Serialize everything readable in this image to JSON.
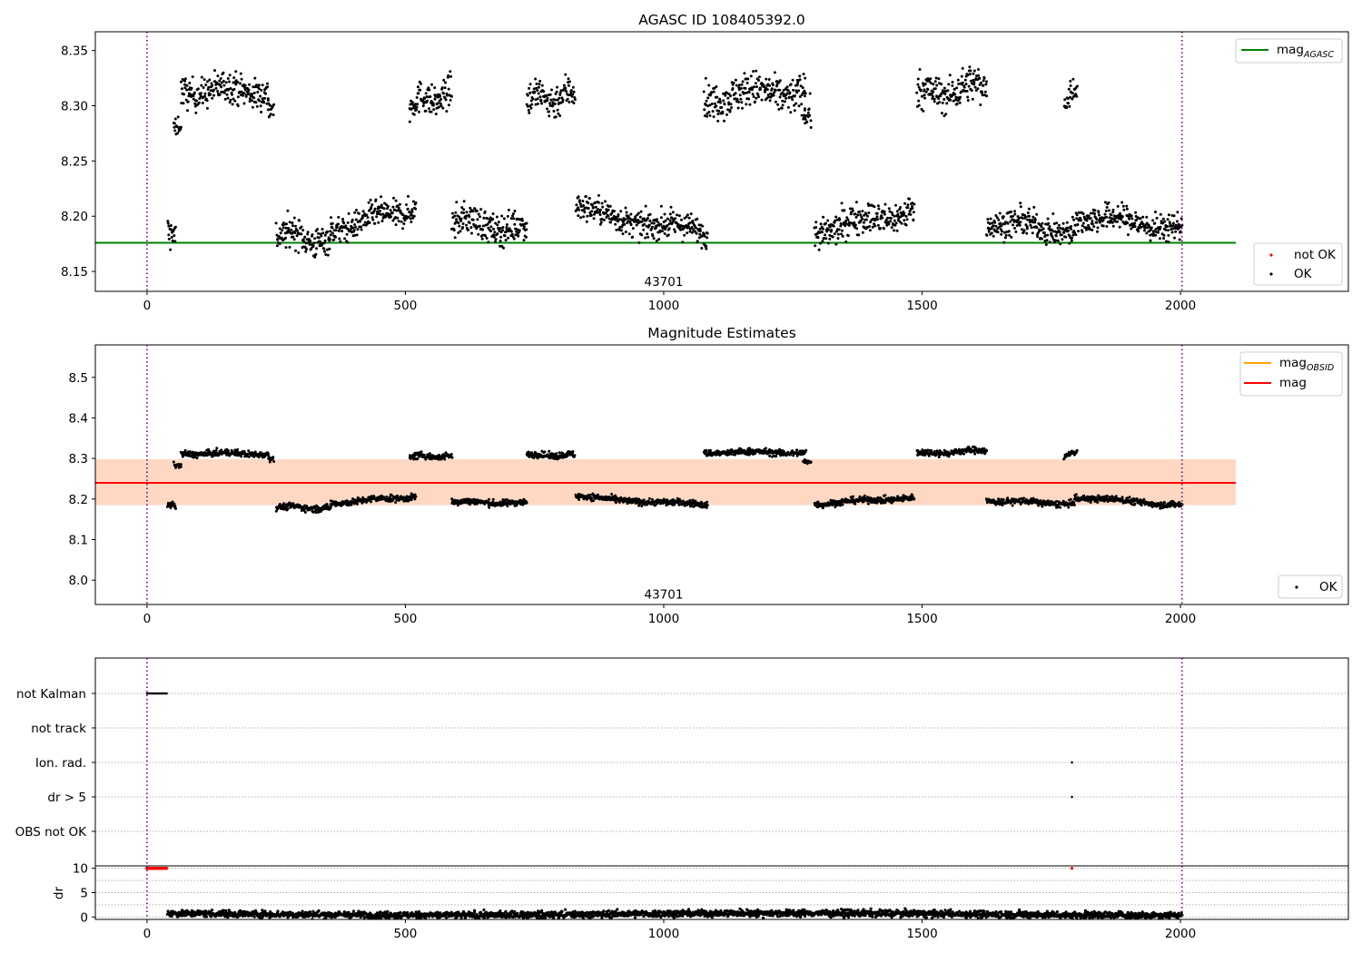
{
  "chart_data": [
    {
      "type": "scatter",
      "title": "AGASC ID 108405392.0",
      "xlim": [
        -100,
        2325
      ],
      "ylim": [
        8.132,
        8.367
      ],
      "xticks": [
        0,
        500,
        1000,
        1500,
        2000
      ],
      "yticks": [
        "8.15",
        "8.20",
        "8.25",
        "8.30",
        "8.35"
      ],
      "yticks_values": [
        8.15,
        8.2,
        8.25,
        8.3,
        8.35
      ],
      "annotation": {
        "text": "43701",
        "x": 1000,
        "y": 8.137
      },
      "reference_lines": [
        {
          "label": "mag_AGASC",
          "label_main": "mag",
          "label_sub": "AGASC",
          "value": 8.176,
          "x_range": [
            -100,
            2107
          ],
          "color": "#008000"
        }
      ],
      "observation_bounds": [
        0,
        2003
      ],
      "legend_position": "top-right",
      "legend_points": [
        {
          "label": "not OK",
          "color": "#ff0000"
        },
        {
          "label": "OK",
          "color": "#000000"
        }
      ],
      "series": [
        {
          "name": "OK",
          "color": "#000000",
          "segments": [
            {
              "x": [
                40,
                55
              ],
              "y": [
                8.185,
                8.185
              ],
              "noise": 0.007
            },
            {
              "x": [
                52,
                66
              ],
              "y": [
                8.28,
                8.282
              ],
              "noise": 0.004
            },
            {
              "x": [
                66,
                235
              ],
              "y": [
                8.314,
                8.314
              ],
              "noise": 0.007
            },
            {
              "x": [
                235,
                245
              ],
              "y": [
                8.298,
                8.298
              ],
              "noise": 0.005
            },
            {
              "x": [
                250,
                355
              ],
              "y": [
                8.186,
                8.176
              ],
              "noise": 0.007
            },
            {
              "x": [
                355,
                520
              ],
              "y": [
                8.188,
                8.208
              ],
              "noise": 0.006
            },
            {
              "x": [
                508,
                590
              ],
              "y": [
                8.302,
                8.31
              ],
              "noise": 0.007
            },
            {
              "x": [
                590,
                735
              ],
              "y": [
                8.196,
                8.188
              ],
              "noise": 0.007
            },
            {
              "x": [
                735,
                828
              ],
              "y": [
                8.305,
                8.31
              ],
              "noise": 0.008
            },
            {
              "x": [
                830,
                1085
              ],
              "y": [
                8.206,
                8.184
              ],
              "noise": 0.006
            },
            {
              "x": [
                1078,
                1275
              ],
              "y": [
                8.308,
                8.314
              ],
              "noise": 0.008
            },
            {
              "x": [
                1270,
                1285
              ],
              "y": [
                8.292,
                8.292
              ],
              "noise": 0.006
            },
            {
              "x": [
                1292,
                1485
              ],
              "y": [
                8.186,
                8.206
              ],
              "noise": 0.007
            },
            {
              "x": [
                1490,
                1625
              ],
              "y": [
                8.31,
                8.318
              ],
              "noise": 0.008
            },
            {
              "x": [
                1625,
                1795
              ],
              "y": [
                8.196,
                8.186
              ],
              "noise": 0.006
            },
            {
              "x": [
                1775,
                1800
              ],
              "y": [
                8.302,
                8.318
              ],
              "noise": 0.005
            },
            {
              "x": [
                1795,
                2003
              ],
              "y": [
                8.2,
                8.19
              ],
              "noise": 0.006
            }
          ]
        }
      ]
    },
    {
      "type": "scatter",
      "title": "Magnitude Estimates",
      "xlim": [
        -100,
        2325
      ],
      "ylim": [
        7.94,
        8.58
      ],
      "xticks": [
        0,
        500,
        1000,
        1500,
        2000
      ],
      "yticks": [
        "8.0",
        "8.1",
        "8.2",
        "8.3",
        "8.4",
        "8.5"
      ],
      "yticks_values": [
        8.0,
        8.1,
        8.2,
        8.3,
        8.4,
        8.5
      ],
      "annotation": {
        "text": "43701",
        "x": 1000,
        "y": 7.955
      },
      "reference_lines": [
        {
          "label": "mag_OBSID",
          "label_main": "mag",
          "label_sub": "OBSID",
          "value": 8.24,
          "x_range": [
            -100,
            2107
          ],
          "color": "#ffa500"
        },
        {
          "label": "mag",
          "label_main": "mag",
          "label_sub": "",
          "value": 8.24,
          "x_range": [
            -100,
            2107
          ],
          "color": "#ff0000"
        }
      ],
      "bands": [
        {
          "y": [
            8.185,
            8.298
          ],
          "x_range": [
            -100,
            2107
          ],
          "color": "#ff0000",
          "opacity": 0.12
        },
        {
          "y": [
            8.185,
            8.298
          ],
          "x_range": [
            -100,
            2107
          ],
          "color": "#ffa500",
          "opacity": 0.12
        }
      ],
      "observation_bounds": [
        0,
        2003
      ],
      "legend_position": "top-right",
      "legend_points": [
        {
          "label": "OK",
          "color": "#000000"
        }
      ],
      "series": [
        {
          "name": "OK",
          "color": "#000000",
          "segments": [
            {
              "x": [
                40,
                55
              ],
              "y": [
                8.185,
                8.185
              ],
              "noise": 0.004
            },
            {
              "x": [
                52,
                66
              ],
              "y": [
                8.282,
                8.282
              ],
              "noise": 0.003
            },
            {
              "x": [
                66,
                235
              ],
              "y": [
                8.312,
                8.312
              ],
              "noise": 0.004
            },
            {
              "x": [
                235,
                245
              ],
              "y": [
                8.3,
                8.3
              ],
              "noise": 0.003
            },
            {
              "x": [
                250,
                355
              ],
              "y": [
                8.182,
                8.176
              ],
              "noise": 0.004
            },
            {
              "x": [
                355,
                520
              ],
              "y": [
                8.19,
                8.206
              ],
              "noise": 0.004
            },
            {
              "x": [
                508,
                590
              ],
              "y": [
                8.305,
                8.305
              ],
              "noise": 0.004
            },
            {
              "x": [
                590,
                735
              ],
              "y": [
                8.193,
                8.19
              ],
              "noise": 0.004
            },
            {
              "x": [
                735,
                828
              ],
              "y": [
                8.308,
                8.308
              ],
              "noise": 0.004
            },
            {
              "x": [
                830,
                1085
              ],
              "y": [
                8.205,
                8.185
              ],
              "noise": 0.004
            },
            {
              "x": [
                1078,
                1275
              ],
              "y": [
                8.315,
                8.315
              ],
              "noise": 0.004
            },
            {
              "x": [
                1270,
                1285
              ],
              "y": [
                8.292,
                8.292
              ],
              "noise": 0.003
            },
            {
              "x": [
                1292,
                1485
              ],
              "y": [
                8.188,
                8.204
              ],
              "noise": 0.004
            },
            {
              "x": [
                1490,
                1625
              ],
              "y": [
                8.312,
                8.32
              ],
              "noise": 0.004
            },
            {
              "x": [
                1625,
                1795
              ],
              "y": [
                8.196,
                8.188
              ],
              "noise": 0.004
            },
            {
              "x": [
                1775,
                1800
              ],
              "y": [
                8.305,
                8.318
              ],
              "noise": 0.003
            },
            {
              "x": [
                1795,
                2003
              ],
              "y": [
                8.205,
                8.185
              ],
              "noise": 0.004
            }
          ]
        }
      ]
    },
    {
      "type": "scatter",
      "title": "",
      "xlim": [
        -100,
        2325
      ],
      "yticks": [
        "not Kalman",
        "not track",
        "Ion. rad.",
        "dr > 5",
        "OBS not OK"
      ],
      "observation_bounds": [
        0,
        2003
      ],
      "flag_points": [
        {
          "flag": "not Kalman",
          "x": [
            0,
            38
          ],
          "count": 14,
          "color": "#000000"
        },
        {
          "flag": "Ion. rad.",
          "x": [
            1790,
            1790
          ],
          "count": 1,
          "color": "#000000"
        },
        {
          "flag": "dr > 5",
          "x": [
            1790,
            1790
          ],
          "count": 1,
          "color": "#000000"
        }
      ]
    },
    {
      "type": "scatter",
      "title": "",
      "ylabel": "dr",
      "xlim": [
        -100,
        2325
      ],
      "ylim": [
        -0.5,
        10.5
      ],
      "xticks": [
        0,
        500,
        1000,
        1500,
        2000
      ],
      "yticks": [
        "0",
        "5",
        "10"
      ],
      "yticks_values": [
        0,
        5,
        10
      ],
      "observation_bounds": [
        0,
        2003
      ],
      "series": [
        {
          "name": "not OK",
          "color": "#ff0000",
          "segments": [
            {
              "x": [
                0,
                38
              ],
              "y": [
                10,
                10
              ],
              "noise": 0
            },
            {
              "x": [
                1790,
                1790
              ],
              "y": [
                10,
                10
              ],
              "noise": 0
            }
          ]
        },
        {
          "name": "OK",
          "color": "#000000",
          "segments": [
            {
              "x": [
                40,
                2003
              ],
              "y": [
                0.6,
                0.6
              ],
              "noise": 0.35
            }
          ]
        }
      ]
    }
  ]
}
